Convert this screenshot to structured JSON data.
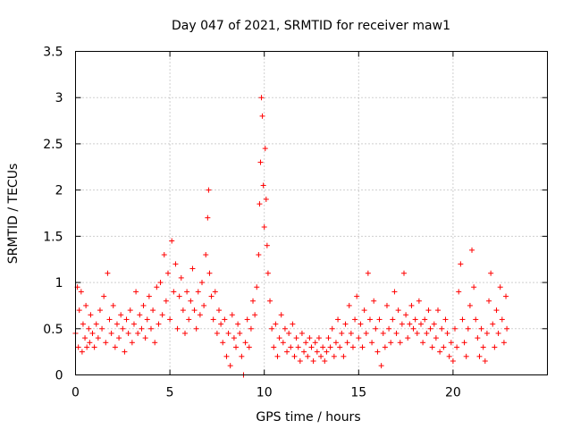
{
  "chart_data": {
    "type": "scatter",
    "title": "Day 047 of 2021, SRMTID for receiver maw1",
    "xlabel": "GPS time / hours",
    "ylabel": "SRMTID / TECUs",
    "xlim": [
      0,
      25
    ],
    "ylim": [
      0,
      3.5
    ],
    "xticks": [
      0,
      5,
      10,
      15,
      20
    ],
    "xtick_labels": [
      "0",
      "5",
      "10",
      "15",
      "20"
    ],
    "yticks": [
      0,
      0.5,
      1,
      1.5,
      2,
      2.5,
      3,
      3.5
    ],
    "ytick_labels": [
      "0",
      "0.5",
      "1",
      "1.5",
      "2",
      "2.5",
      "3",
      "3.5"
    ],
    "grid": true,
    "marker": "+",
    "marker_color": "#ff0000",
    "series": [
      {
        "name": "maw1",
        "points": [
          [
            0.0,
            0.45
          ],
          [
            0.1,
            0.95
          ],
          [
            0.15,
            0.3
          ],
          [
            0.2,
            0.7
          ],
          [
            0.3,
            0.9
          ],
          [
            0.35,
            0.25
          ],
          [
            0.4,
            0.55
          ],
          [
            0.5,
            0.4
          ],
          [
            0.55,
            0.75
          ],
          [
            0.6,
            0.3
          ],
          [
            0.7,
            0.5
          ],
          [
            0.75,
            0.35
          ],
          [
            0.8,
            0.65
          ],
          [
            0.9,
            0.45
          ],
          [
            1.0,
            0.3
          ],
          [
            1.1,
            0.55
          ],
          [
            1.2,
            0.4
          ],
          [
            1.3,
            0.7
          ],
          [
            1.4,
            0.5
          ],
          [
            1.5,
            0.85
          ],
          [
            1.6,
            0.35
          ],
          [
            1.7,
            1.1
          ],
          [
            1.8,
            0.6
          ],
          [
            1.9,
            0.45
          ],
          [
            2.0,
            0.75
          ],
          [
            2.1,
            0.3
          ],
          [
            2.2,
            0.55
          ],
          [
            2.3,
            0.4
          ],
          [
            2.4,
            0.65
          ],
          [
            2.5,
            0.5
          ],
          [
            2.6,
            0.25
          ],
          [
            2.7,
            0.6
          ],
          [
            2.8,
            0.45
          ],
          [
            2.9,
            0.7
          ],
          [
            3.0,
            0.35
          ],
          [
            3.1,
            0.55
          ],
          [
            3.2,
            0.9
          ],
          [
            3.3,
            0.45
          ],
          [
            3.4,
            0.65
          ],
          [
            3.5,
            0.5
          ],
          [
            3.6,
            0.75
          ],
          [
            3.7,
            0.4
          ],
          [
            3.8,
            0.6
          ],
          [
            3.9,
            0.85
          ],
          [
            4.0,
            0.5
          ],
          [
            4.1,
            0.7
          ],
          [
            4.2,
            0.35
          ],
          [
            4.3,
            0.95
          ],
          [
            4.4,
            0.55
          ],
          [
            4.5,
            1.0
          ],
          [
            4.6,
            0.65
          ],
          [
            4.7,
            1.3
          ],
          [
            4.8,
            0.8
          ],
          [
            4.9,
            1.1
          ],
          [
            5.0,
            0.6
          ],
          [
            5.1,
            1.45
          ],
          [
            5.2,
            0.9
          ],
          [
            5.3,
            1.2
          ],
          [
            5.4,
            0.5
          ],
          [
            5.5,
            0.85
          ],
          [
            5.6,
            1.05
          ],
          [
            5.7,
            0.7
          ],
          [
            5.8,
            0.45
          ],
          [
            5.9,
            0.9
          ],
          [
            6.0,
            0.6
          ],
          [
            6.1,
            0.8
          ],
          [
            6.2,
            1.15
          ],
          [
            6.3,
            0.7
          ],
          [
            6.4,
            0.5
          ],
          [
            6.5,
            0.9
          ],
          [
            6.6,
            0.65
          ],
          [
            6.7,
            1.0
          ],
          [
            6.8,
            0.75
          ],
          [
            6.9,
            1.3
          ],
          [
            7.0,
            1.7
          ],
          [
            7.05,
            2.0
          ],
          [
            7.1,
            1.1
          ],
          [
            7.2,
            0.85
          ],
          [
            7.3,
            0.6
          ],
          [
            7.4,
            0.9
          ],
          [
            7.5,
            0.45
          ],
          [
            7.6,
            0.7
          ],
          [
            7.7,
            0.55
          ],
          [
            7.8,
            0.35
          ],
          [
            7.9,
            0.6
          ],
          [
            8.0,
            0.2
          ],
          [
            8.1,
            0.45
          ],
          [
            8.2,
            0.1
          ],
          [
            8.3,
            0.65
          ],
          [
            8.4,
            0.4
          ],
          [
            8.5,
            0.3
          ],
          [
            8.6,
            0.55
          ],
          [
            8.7,
            0.45
          ],
          [
            8.8,
            0.2
          ],
          [
            8.9,
            0.0
          ],
          [
            9.0,
            0.35
          ],
          [
            9.1,
            0.6
          ],
          [
            9.2,
            0.3
          ],
          [
            9.3,
            0.5
          ],
          [
            9.4,
            0.8
          ],
          [
            9.5,
            0.65
          ],
          [
            9.6,
            0.95
          ],
          [
            9.7,
            1.3
          ],
          [
            9.75,
            1.85
          ],
          [
            9.8,
            2.3
          ],
          [
            9.85,
            3.0
          ],
          [
            9.9,
            2.8
          ],
          [
            9.95,
            2.05
          ],
          [
            10.0,
            1.6
          ],
          [
            10.05,
            2.45
          ],
          [
            10.1,
            1.9
          ],
          [
            10.15,
            1.4
          ],
          [
            10.2,
            1.1
          ],
          [
            10.3,
            0.8
          ],
          [
            10.4,
            0.5
          ],
          [
            10.5,
            0.3
          ],
          [
            10.6,
            0.55
          ],
          [
            10.7,
            0.2
          ],
          [
            10.8,
            0.4
          ],
          [
            10.9,
            0.65
          ],
          [
            11.0,
            0.35
          ],
          [
            11.1,
            0.5
          ],
          [
            11.2,
            0.25
          ],
          [
            11.3,
            0.45
          ],
          [
            11.4,
            0.3
          ],
          [
            11.5,
            0.55
          ],
          [
            11.6,
            0.2
          ],
          [
            11.7,
            0.4
          ],
          [
            11.8,
            0.3
          ],
          [
            11.9,
            0.15
          ],
          [
            12.0,
            0.45
          ],
          [
            12.1,
            0.25
          ],
          [
            12.2,
            0.35
          ],
          [
            12.3,
            0.2
          ],
          [
            12.4,
            0.4
          ],
          [
            12.5,
            0.3
          ],
          [
            12.6,
            0.15
          ],
          [
            12.7,
            0.35
          ],
          [
            12.8,
            0.25
          ],
          [
            12.9,
            0.4
          ],
          [
            13.0,
            0.2
          ],
          [
            13.1,
            0.3
          ],
          [
            13.2,
            0.15
          ],
          [
            13.3,
            0.25
          ],
          [
            13.4,
            0.4
          ],
          [
            13.5,
            0.3
          ],
          [
            13.6,
            0.5
          ],
          [
            13.7,
            0.2
          ],
          [
            13.8,
            0.35
          ],
          [
            13.9,
            0.6
          ],
          [
            14.0,
            0.3
          ],
          [
            14.1,
            0.45
          ],
          [
            14.2,
            0.2
          ],
          [
            14.3,
            0.55
          ],
          [
            14.4,
            0.35
          ],
          [
            14.5,
            0.75
          ],
          [
            14.6,
            0.45
          ],
          [
            14.7,
            0.3
          ],
          [
            14.8,
            0.6
          ],
          [
            14.9,
            0.85
          ],
          [
            15.0,
            0.4
          ],
          [
            15.1,
            0.55
          ],
          [
            15.2,
            0.3
          ],
          [
            15.3,
            0.7
          ],
          [
            15.4,
            0.45
          ],
          [
            15.5,
            1.1
          ],
          [
            15.6,
            0.6
          ],
          [
            15.7,
            0.35
          ],
          [
            15.8,
            0.8
          ],
          [
            15.9,
            0.5
          ],
          [
            16.0,
            0.25
          ],
          [
            16.1,
            0.6
          ],
          [
            16.2,
            0.1
          ],
          [
            16.3,
            0.45
          ],
          [
            16.4,
            0.3
          ],
          [
            16.5,
            0.75
          ],
          [
            16.6,
            0.5
          ],
          [
            16.7,
            0.35
          ],
          [
            16.8,
            0.6
          ],
          [
            16.9,
            0.9
          ],
          [
            17.0,
            0.45
          ],
          [
            17.1,
            0.7
          ],
          [
            17.2,
            0.35
          ],
          [
            17.3,
            0.55
          ],
          [
            17.4,
            1.1
          ],
          [
            17.5,
            0.65
          ],
          [
            17.6,
            0.4
          ],
          [
            17.7,
            0.55
          ],
          [
            17.8,
            0.75
          ],
          [
            17.9,
            0.5
          ],
          [
            18.0,
            0.6
          ],
          [
            18.1,
            0.45
          ],
          [
            18.2,
            0.8
          ],
          [
            18.3,
            0.55
          ],
          [
            18.4,
            0.35
          ],
          [
            18.5,
            0.6
          ],
          [
            18.6,
            0.45
          ],
          [
            18.7,
            0.7
          ],
          [
            18.8,
            0.5
          ],
          [
            18.9,
            0.3
          ],
          [
            19.0,
            0.55
          ],
          [
            19.1,
            0.4
          ],
          [
            19.2,
            0.7
          ],
          [
            19.3,
            0.25
          ],
          [
            19.4,
            0.5
          ],
          [
            19.5,
            0.3
          ],
          [
            19.6,
            0.6
          ],
          [
            19.7,
            0.45
          ],
          [
            19.8,
            0.2
          ],
          [
            19.9,
            0.35
          ],
          [
            20.0,
            0.15
          ],
          [
            20.1,
            0.5
          ],
          [
            20.2,
            0.3
          ],
          [
            20.3,
            0.9
          ],
          [
            20.4,
            1.2
          ],
          [
            20.5,
            0.6
          ],
          [
            20.6,
            0.35
          ],
          [
            20.7,
            0.2
          ],
          [
            20.8,
            0.5
          ],
          [
            20.9,
            0.75
          ],
          [
            21.0,
            1.35
          ],
          [
            21.1,
            0.95
          ],
          [
            21.2,
            0.6
          ],
          [
            21.3,
            0.4
          ],
          [
            21.4,
            0.2
          ],
          [
            21.5,
            0.5
          ],
          [
            21.6,
            0.3
          ],
          [
            21.7,
            0.15
          ],
          [
            21.8,
            0.45
          ],
          [
            21.9,
            0.8
          ],
          [
            22.0,
            1.1
          ],
          [
            22.1,
            0.55
          ],
          [
            22.2,
            0.3
          ],
          [
            22.3,
            0.7
          ],
          [
            22.4,
            0.45
          ],
          [
            22.5,
            0.95
          ],
          [
            22.6,
            0.6
          ],
          [
            22.7,
            0.35
          ],
          [
            22.8,
            0.85
          ],
          [
            22.85,
            0.5
          ]
        ]
      }
    ]
  }
}
